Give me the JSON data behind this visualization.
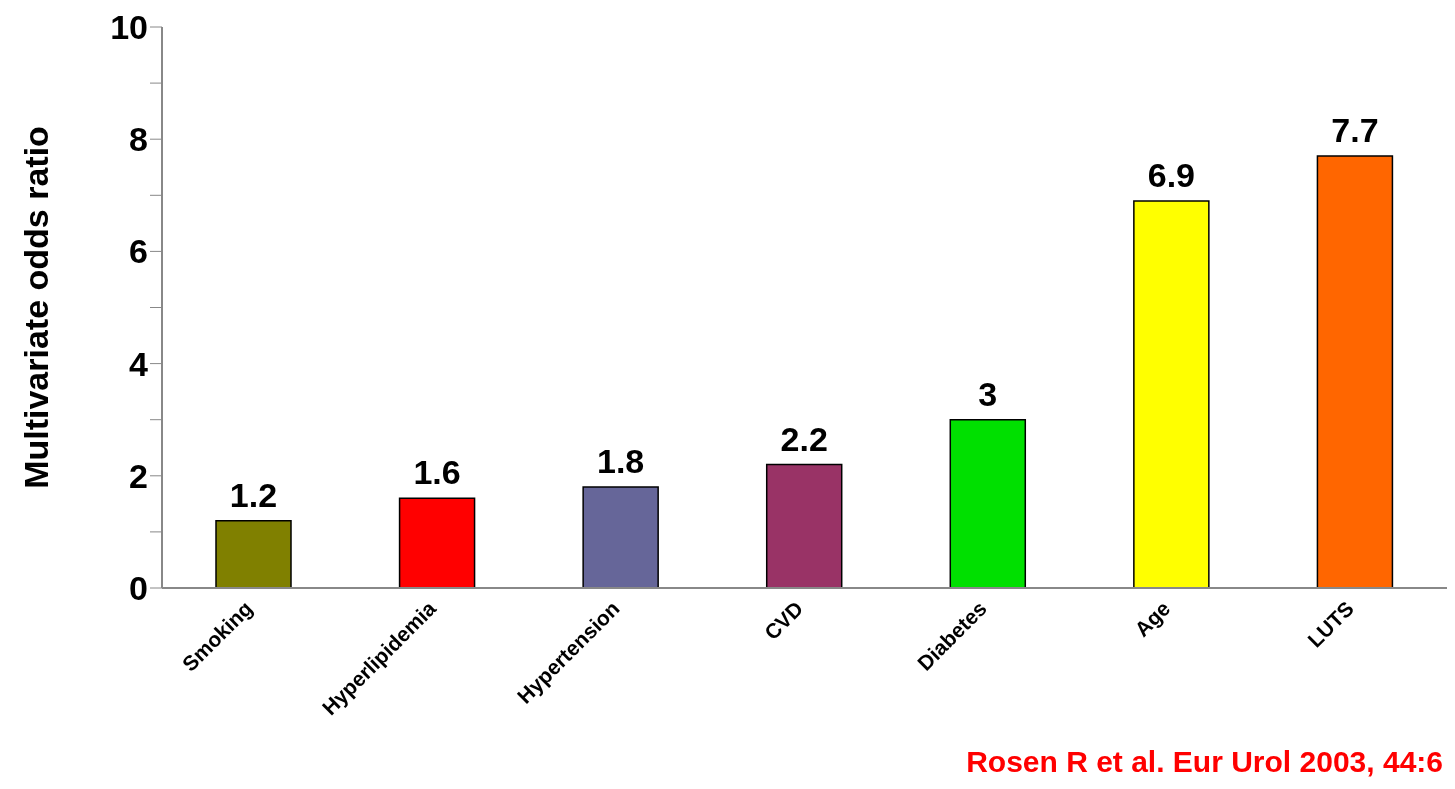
{
  "chart_data": {
    "type": "bar",
    "ylabel": "Multivariate odds ratio",
    "categories": [
      "Smoking",
      "Hyperlipidemia",
      "Hypertension",
      "CVD",
      "Diabetes",
      "Age",
      "LUTS"
    ],
    "values": [
      1.2,
      1.6,
      1.8,
      2.2,
      3,
      6.9,
      7.7
    ],
    "colors": [
      "#808000",
      "#ff0000",
      "#666699",
      "#993366",
      "#00e000",
      "#ffff00",
      "#ff6600"
    ],
    "ylim": [
      0,
      10
    ],
    "yticks": [
      0,
      {
        "value": 1,
        "label": null
      },
      2,
      {
        "value": 3,
        "label": null
      },
      4,
      {
        "value": 5,
        "label": null
      },
      6,
      {
        "value": 7,
        "label": null
      },
      8,
      {
        "value": 9,
        "label": null
      },
      10
    ],
    "grid": false,
    "data_labels": true,
    "legend": false,
    "annotations": [
      "Rosen R et al. Eur Urol 2003, 44:6"
    ]
  }
}
